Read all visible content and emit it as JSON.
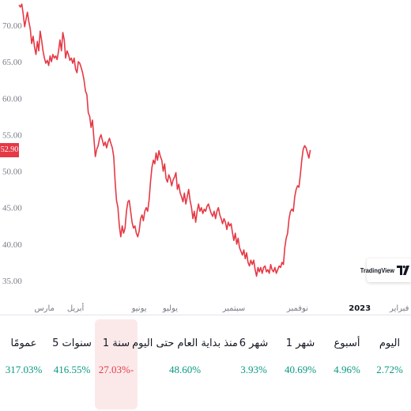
{
  "chart_data": {
    "type": "line",
    "y_ticks": [
      70,
      65,
      60,
      55,
      50,
      45,
      40,
      35
    ],
    "y_tick_labels": [
      "70.00",
      "65.00",
      "60.00",
      "55.00",
      "50.00",
      "45.00",
      "40.00",
      "35.00"
    ],
    "ylim": [
      33,
      74
    ],
    "x_ticks": [
      {
        "label": "مارس",
        "x": 18,
        "bold": false
      },
      {
        "label": "أبريل",
        "x": 40,
        "bold": false
      },
      {
        "label": "يونيو",
        "x": 85,
        "bold": false
      },
      {
        "label": "يوليو",
        "x": 107,
        "bold": false
      },
      {
        "label": "سبتمبر",
        "x": 152,
        "bold": false
      },
      {
        "label": "نوفمبر",
        "x": 197,
        "bold": false
      },
      {
        "label": "2023",
        "x": 241,
        "bold": true
      },
      {
        "label": "فبراير",
        "x": 269,
        "bold": false
      }
    ],
    "xlim": [
      0,
      275
    ],
    "x_unit": "trading days (approx.)",
    "last_price": 52.9,
    "last_price_label": "52.90",
    "series_color": "#e53945",
    "grid": false,
    "points": [
      [
        0,
        72.8
      ],
      [
        1,
        72.5
      ],
      [
        2,
        72.9
      ],
      [
        3,
        71.5
      ],
      [
        4,
        69.8
      ],
      [
        5,
        70.8
      ],
      [
        6,
        71.8
      ],
      [
        7,
        70.5
      ],
      [
        8,
        69.5
      ],
      [
        9,
        67.5
      ],
      [
        10,
        68.5
      ],
      [
        11,
        67.0
      ],
      [
        12,
        66.0
      ],
      [
        13,
        67.8
      ],
      [
        14,
        66.5
      ],
      [
        15,
        69.2
      ],
      [
        16,
        68.0
      ],
      [
        17,
        66.5
      ],
      [
        18,
        65.5
      ],
      [
        19,
        64.8
      ],
      [
        20,
        65.2
      ],
      [
        21,
        64.5
      ],
      [
        22,
        65.8
      ],
      [
        23,
        65.0
      ],
      [
        24,
        66.0
      ],
      [
        25,
        65.5
      ],
      [
        26,
        65.8
      ],
      [
        27,
        65.3
      ],
      [
        28,
        66.5
      ],
      [
        29,
        68.0
      ],
      [
        30,
        66.5
      ],
      [
        31,
        69.0
      ],
      [
        32,
        68.0
      ],
      [
        33,
        65.5
      ],
      [
        34,
        66.5
      ],
      [
        35,
        66.0
      ],
      [
        36,
        65.2
      ],
      [
        37,
        65.5
      ],
      [
        38,
        64.8
      ],
      [
        39,
        65.5
      ],
      [
        40,
        64.0
      ],
      [
        41,
        63.5
      ],
      [
        42,
        65.0
      ],
      [
        43,
        64.8
      ],
      [
        44,
        64.2
      ],
      [
        45,
        63.5
      ],
      [
        46,
        62.5
      ],
      [
        47,
        61.0
      ],
      [
        48,
        60.5
      ],
      [
        49,
        58.0
      ],
      [
        50,
        57.5
      ],
      [
        51,
        56.0
      ],
      [
        52,
        57.0
      ],
      [
        53,
        54.5
      ],
      [
        54,
        52.0
      ],
      [
        55,
        53.0
      ],
      [
        56,
        53.5
      ],
      [
        57,
        54.5
      ],
      [
        58,
        55.0
      ],
      [
        59,
        54.2
      ],
      [
        60,
        53.5
      ],
      [
        61,
        54.0
      ],
      [
        62,
        53.2
      ],
      [
        63,
        54.0
      ],
      [
        64,
        54.5
      ],
      [
        65,
        53.8
      ],
      [
        66,
        53.2
      ],
      [
        67,
        52.0
      ],
      [
        68,
        48.5
      ],
      [
        69,
        46.0
      ],
      [
        70,
        45.0
      ],
      [
        71,
        42.5
      ],
      [
        72,
        41.0
      ],
      [
        73,
        42.5
      ],
      [
        74,
        41.5
      ],
      [
        75,
        42.2
      ],
      [
        76,
        44.5
      ],
      [
        77,
        45.8
      ],
      [
        78,
        46.0
      ],
      [
        79,
        44.5
      ],
      [
        80,
        43.0
      ],
      [
        81,
        42.2
      ],
      [
        82,
        42.5
      ],
      [
        83,
        41.5
      ],
      [
        84,
        41.0
      ],
      [
        85,
        41.8
      ],
      [
        86,
        43.5
      ],
      [
        87,
        44.0
      ],
      [
        88,
        43.2
      ],
      [
        89,
        44.5
      ],
      [
        90,
        45.0
      ],
      [
        91,
        44.5
      ],
      [
        92,
        46.0
      ],
      [
        93,
        48.5
      ],
      [
        94,
        50.5
      ],
      [
        95,
        51.5
      ],
      [
        96,
        51.0
      ],
      [
        97,
        52.5
      ],
      [
        98,
        51.5
      ],
      [
        99,
        52.8
      ],
      [
        100,
        52.0
      ],
      [
        101,
        51.5
      ],
      [
        102,
        50.0
      ],
      [
        103,
        51.0
      ],
      [
        104,
        49.0
      ],
      [
        105,
        48.5
      ],
      [
        106,
        49.5
      ],
      [
        107,
        49.0
      ],
      [
        108,
        48.0
      ],
      [
        109,
        48.8
      ],
      [
        110,
        49.2
      ],
      [
        111,
        49.8
      ],
      [
        112,
        47.5
      ],
      [
        113,
        48.2
      ],
      [
        114,
        47.0
      ],
      [
        115,
        46.5
      ],
      [
        116,
        45.8
      ],
      [
        117,
        47.0
      ],
      [
        118,
        45.5
      ],
      [
        119,
        46.5
      ],
      [
        120,
        47.5
      ],
      [
        121,
        46.0
      ],
      [
        122,
        45.0
      ],
      [
        123,
        43.5
      ],
      [
        124,
        44.5
      ],
      [
        125,
        43.0
      ],
      [
        126,
        44.5
      ],
      [
        127,
        45.5
      ],
      [
        128,
        44.5
      ],
      [
        129,
        45.0
      ],
      [
        130,
        44.2
      ],
      [
        131,
        44.8
      ],
      [
        132,
        44.5
      ],
      [
        133,
        45.2
      ],
      [
        134,
        45.5
      ],
      [
        135,
        44.8
      ],
      [
        136,
        44.2
      ],
      [
        137,
        43.8
      ],
      [
        138,
        44.5
      ],
      [
        139,
        43.5
      ],
      [
        140,
        44.5
      ],
      [
        141,
        45.0
      ],
      [
        142,
        44.0
      ],
      [
        143,
        43.5
      ],
      [
        144,
        42.8
      ],
      [
        145,
        43.5
      ],
      [
        146,
        43.0
      ],
      [
        147,
        42.0
      ],
      [
        148,
        43.0
      ],
      [
        149,
        42.5
      ],
      [
        150,
        42.8
      ],
      [
        151,
        41.5
      ],
      [
        152,
        40.5
      ],
      [
        153,
        41.5
      ],
      [
        154,
        40.0
      ],
      [
        155,
        40.8
      ],
      [
        156,
        39.5
      ],
      [
        157,
        39.0
      ],
      [
        158,
        38.5
      ],
      [
        159,
        39.2
      ],
      [
        160,
        38.0
      ],
      [
        161,
        38.8
      ],
      [
        162,
        37.5
      ],
      [
        163,
        37.0
      ],
      [
        164,
        37.8
      ],
      [
        165,
        37.2
      ],
      [
        166,
        37.8
      ],
      [
        167,
        36.5
      ],
      [
        168,
        35.6
      ],
      [
        169,
        36.8
      ],
      [
        170,
        36.2
      ],
      [
        171,
        36.8
      ],
      [
        172,
        36.0
      ],
      [
        173,
        36.8
      ],
      [
        174,
        37.0
      ],
      [
        175,
        36.2
      ],
      [
        176,
        36.5
      ],
      [
        177,
        36.0
      ],
      [
        178,
        37.2
      ],
      [
        179,
        36.5
      ],
      [
        180,
        36.2
      ],
      [
        181,
        36.8
      ],
      [
        182,
        36.0
      ],
      [
        183,
        36.5
      ],
      [
        184,
        37.0
      ],
      [
        185,
        36.8
      ],
      [
        186,
        37.5
      ],
      [
        187,
        37.2
      ],
      [
        188,
        39.5
      ],
      [
        189,
        40.8
      ],
      [
        190,
        41.5
      ],
      [
        191,
        43.5
      ],
      [
        192,
        44.5
      ],
      [
        193,
        44.8
      ],
      [
        194,
        44.5
      ],
      [
        195,
        46.5
      ],
      [
        196,
        47.5
      ],
      [
        197,
        48.0
      ],
      [
        198,
        47.8
      ],
      [
        199,
        49.5
      ],
      [
        200,
        51.5
      ],
      [
        201,
        53.0
      ],
      [
        202,
        53.5
      ],
      [
        203,
        53.2
      ],
      [
        204,
        52.5
      ],
      [
        205,
        51.8
      ],
      [
        206,
        52.9
      ]
    ]
  },
  "branding": {
    "tv_text": "TradingView"
  },
  "performance": [
    {
      "label": "عمومًا",
      "value": "317.03%",
      "sign": "pos",
      "selected": false
    },
    {
      "label": "5 سنوات",
      "value": "416.55%",
      "sign": "pos",
      "selected": false
    },
    {
      "label": "1 سنة",
      "value": "27.03%-",
      "sign": "neg",
      "selected": true
    },
    {
      "label": "منذ بداية العام حتى اليوم",
      "value": "48.60%",
      "sign": "pos",
      "selected": false
    },
    {
      "label": "6 شهر",
      "value": "3.93%",
      "sign": "pos",
      "selected": false
    },
    {
      "label": "1 شهر",
      "value": "40.69%",
      "sign": "pos",
      "selected": false
    },
    {
      "label": "أسبوع",
      "value": "4.96%",
      "sign": "pos",
      "selected": false
    },
    {
      "label": "اليوم",
      "value": "2.72%",
      "sign": "pos",
      "selected": false
    }
  ]
}
